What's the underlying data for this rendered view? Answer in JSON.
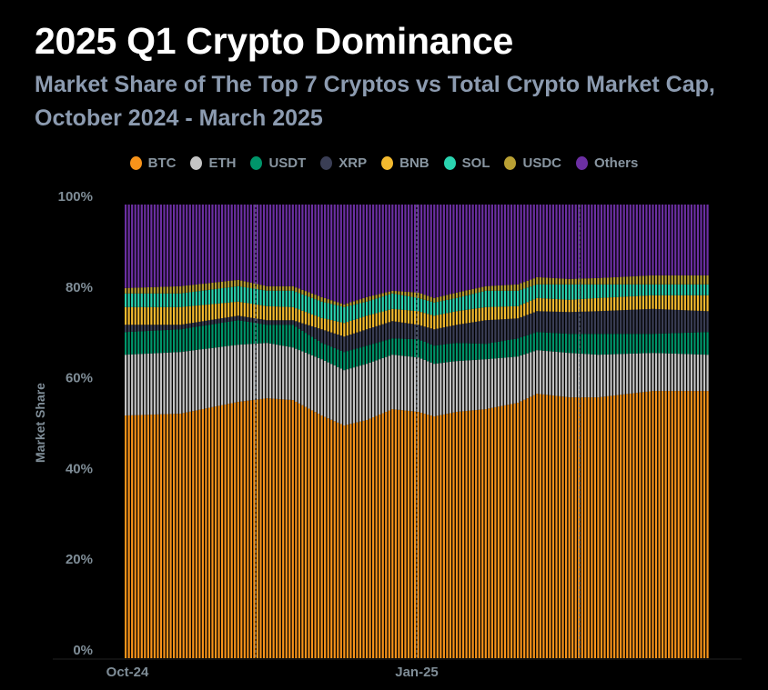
{
  "title": "2025 Q1 Crypto Dominance",
  "subtitle": "Market Share of The Top 7 Cryptos vs Total Crypto Market Cap, October 2024 - March 2025",
  "chart_data": {
    "type": "bar",
    "stacked": true,
    "ylabel": "Market Share",
    "xlabel": "",
    "ylim": [
      0,
      100
    ],
    "y_ticks": [
      "0%",
      "20%",
      "40%",
      "60%",
      "80%",
      "100%"
    ],
    "x_ticks": [
      "Oct-24",
      "Jan-25"
    ],
    "legend_position": "top",
    "x": [
      "2024-10-01",
      "2024-10-18",
      "2024-11-05",
      "2024-11-14",
      "2024-11-22",
      "2024-12-01",
      "2024-12-08",
      "2024-12-15",
      "2024-12-23",
      "2024-12-31",
      "2025-01-05",
      "2025-01-12",
      "2025-01-21",
      "2025-01-31",
      "2025-02-06",
      "2025-02-16",
      "2025-02-25",
      "2025-03-14",
      "2025-03-31"
    ],
    "series": [
      {
        "name": "BTC",
        "color": "#f7931a",
        "values": [
          53.5,
          53.9,
          56.5,
          57.3,
          56.9,
          53.5,
          51.3,
          52.5,
          54.9,
          54.3,
          53.3,
          54.3,
          54.9,
          56.3,
          58.3,
          57.5,
          57.5,
          58.9,
          58.9
        ]
      },
      {
        "name": "ETH",
        "color": "#c4c4c4",
        "values": [
          13.4,
          13.6,
          12.6,
          12.2,
          11.6,
          12.4,
          12.2,
          12.4,
          12.0,
          12.0,
          11.6,
          11.2,
          11.0,
          10.2,
          9.6,
          9.8,
          9.4,
          8.4,
          8.0
        ]
      },
      {
        "name": "USDT",
        "color": "#00956a",
        "values": [
          5.0,
          5.0,
          5.4,
          4.0,
          5.0,
          3.6,
          4.0,
          4.0,
          3.6,
          4.0,
          4.0,
          4.0,
          3.4,
          4.0,
          4.0,
          4.2,
          4.6,
          4.2,
          5.0
        ]
      },
      {
        "name": "XRP",
        "color": "#3a3e55",
        "values": [
          1.6,
          1.0,
          1.0,
          1.0,
          1.0,
          3.0,
          3.4,
          3.6,
          3.8,
          3.2,
          3.6,
          4.0,
          5.2,
          4.4,
          4.6,
          4.8,
          5.0,
          5.5,
          4.6
        ]
      },
      {
        "name": "BNB",
        "color": "#f3ba2f",
        "values": [
          3.9,
          3.9,
          3.1,
          3.1,
          2.9,
          2.5,
          3.0,
          3.0,
          2.7,
          3.0,
          3.0,
          3.0,
          2.9,
          2.7,
          2.9,
          2.7,
          2.9,
          3.0,
          3.5
        ]
      },
      {
        "name": "SOL",
        "color": "#2ad4b0",
        "values": [
          3.0,
          3.0,
          3.4,
          3.4,
          3.6,
          3.6,
          3.5,
          3.1,
          3.4,
          2.9,
          2.9,
          2.9,
          3.6,
          3.4,
          3.0,
          3.4,
          3.0,
          2.4,
          2.4
        ]
      },
      {
        "name": "USDC",
        "color": "#b9a033",
        "values": [
          1.2,
          1.6,
          1.4,
          1.0,
          1.0,
          1.0,
          0.6,
          1.0,
          0.6,
          1.2,
          1.0,
          1.2,
          1.0,
          1.4,
          1.6,
          1.2,
          1.4,
          2.0,
          2.0
        ]
      },
      {
        "name": "Others",
        "color": "#6c2fa3",
        "values": [
          18.4,
          18.0,
          16.6,
          18.0,
          18.0,
          20.4,
          22.0,
          20.4,
          19.0,
          19.4,
          20.6,
          19.4,
          18.0,
          17.6,
          16.0,
          16.4,
          16.2,
          15.6,
          15.6
        ]
      }
    ]
  }
}
